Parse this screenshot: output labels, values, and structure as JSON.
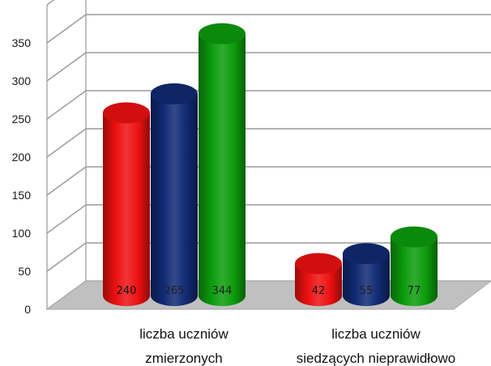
{
  "chart_data": {
    "type": "bar",
    "style": "3d-cylinder",
    "categories": [
      [
        "liczba uczniów",
        "zmierzonych"
      ],
      [
        "liczba uczniów",
        "siedzących nieprawidłowo"
      ]
    ],
    "series": [
      {
        "color": "#ee1111",
        "values": [
          240,
          42
        ]
      },
      {
        "color": "#102a74",
        "values": [
          265,
          55
        ]
      },
      {
        "color": "#0c9c0c",
        "values": [
          344,
          77
        ]
      }
    ],
    "yticks": [
      0,
      50,
      100,
      150,
      200,
      250,
      300,
      350
    ],
    "ylim": [
      0,
      400
    ],
    "grid": true,
    "legend": "none",
    "data_labels": true
  }
}
